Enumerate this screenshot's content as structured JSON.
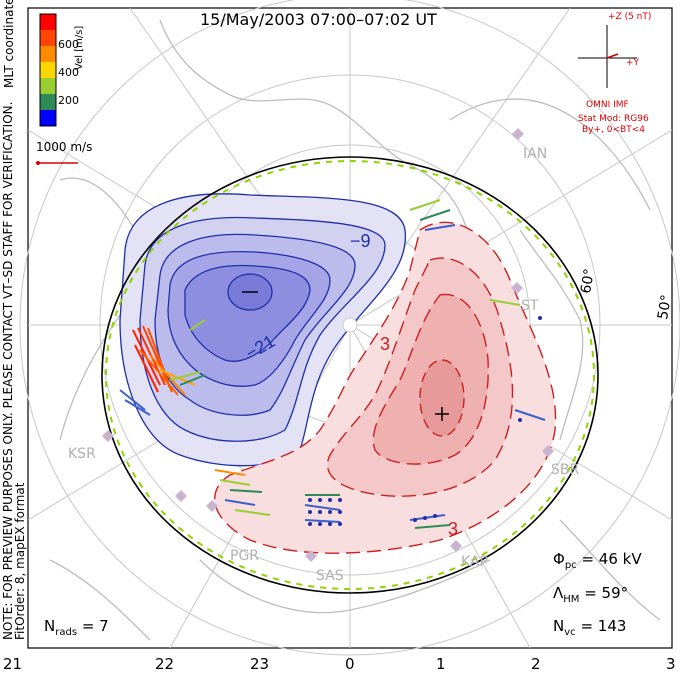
{
  "title": "15/May/2003 07:00–07:02 UT",
  "colorbar": {
    "label": "Vel [m/s]",
    "ticks": [
      "600",
      "400",
      "200"
    ],
    "colors": [
      "#ff0000",
      "#ff8c00",
      "#ffd700",
      "#9acd32",
      "#2e8b57",
      "#3a5fcd",
      "#0000ff"
    ]
  },
  "left_vertical_text": "NOTE: FOR PREVIEW PURPOSES ONLY. PLEASE CONTACT VT–SD STAFF FOR VERIFICATION.",
  "left_vertical_text2": "FitOrder: 8, mapEX format",
  "coord_label": "MLT coordinates",
  "scale_vector": "1000 m/s",
  "imf": {
    "z_label": "+Z (5 nT)",
    "y_label": "+Y",
    "source": "OMNI IMF",
    "model": "Stat Mod: RG96",
    "condition": "By+, 0<BT<4"
  },
  "stations": [
    "IAN",
    "ST",
    "KSR",
    "SBR",
    "PGR",
    "SAS",
    "KAP"
  ],
  "contours": {
    "neg_label_1": "−9",
    "neg_label_2": "−21",
    "pos_label_1": "3",
    "pos_label_2": "3"
  },
  "lat_labels": [
    "60°",
    "50°"
  ],
  "mlt_ticks": [
    "21",
    "22",
    "23",
    "0",
    "1",
    "2",
    "3"
  ],
  "stats": {
    "phi_label": "Φ",
    "phi_sub": "pc",
    "phi_value": "= 46 kV",
    "lambda_label": "Λ",
    "lambda_sub": "HM",
    "lambda_value": "= 59°",
    "nvc_label": "N",
    "nvc_sub": "vc",
    "nvc_value": "= 143",
    "nrads_label": "N",
    "nrads_sub": "rads",
    "nrads_value": "= 7"
  }
}
